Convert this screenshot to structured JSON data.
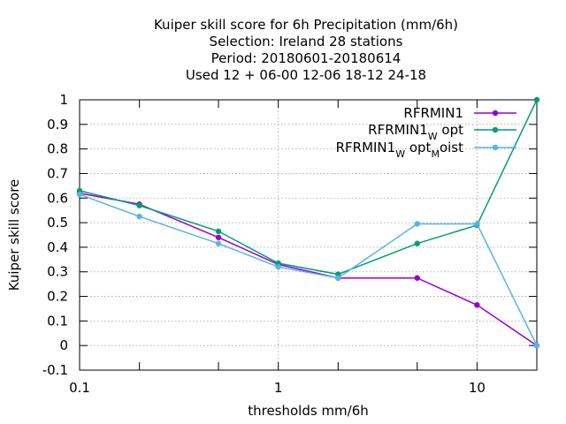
{
  "chart_data": {
    "type": "line",
    "title_lines": [
      "Kuiper skill score  for 6h Precipitation (mm/6h)",
      "Selection: Ireland      28 stations",
      "Period: 20180601-20180614",
      "Used  12 + 06-00 12-06 18-12 24-18"
    ],
    "xlabel": "thresholds mm/6h",
    "ylabel": "Kuiper skill score",
    "xscale": "log",
    "xlim": [
      0.1,
      20
    ],
    "ylim": [
      -0.1,
      1
    ],
    "xticks": [
      0.1,
      0.2,
      0.5,
      1,
      2,
      5,
      10,
      20
    ],
    "xtick_labels": [
      "0.1",
      "",
      "",
      "1",
      "",
      "",
      "10",
      ""
    ],
    "yticks": [
      -0.1,
      0,
      0.1,
      0.2,
      0.3,
      0.4,
      0.5,
      0.6,
      0.7,
      0.8,
      0.9,
      1
    ],
    "ytick_labels": [
      "-0.1",
      "0",
      "0.1",
      "0.2",
      "0.3",
      "0.4",
      "0.5",
      "0.6",
      "0.7",
      "0.8",
      "0.9",
      "1"
    ],
    "grid": true,
    "legend_position": "top-right",
    "x": [
      0.1,
      0.2,
      0.5,
      1,
      2,
      5,
      10,
      20
    ],
    "series": [
      {
        "name": "RFRMIN1",
        "legend_parts": [
          {
            "text": "RFRMIN1",
            "sub": false
          }
        ],
        "color": "#9400d3",
        "values": [
          0.62,
          0.575,
          0.44,
          0.33,
          0.275,
          0.275,
          0.165,
          0.0
        ]
      },
      {
        "name": "RFRMIN1_W opt",
        "legend_parts": [
          {
            "text": "RFRMIN1",
            "sub": false
          },
          {
            "text": "W",
            "sub": true
          },
          {
            "text": " opt",
            "sub": false
          }
        ],
        "color": "#009e73",
        "values": [
          0.63,
          0.57,
          0.465,
          0.335,
          0.29,
          0.415,
          0.49,
          1.0
        ]
      },
      {
        "name": "RFRMIN1_W opt_M oist",
        "legend_parts": [
          {
            "text": "RFRMIN1",
            "sub": false
          },
          {
            "text": "W",
            "sub": true
          },
          {
            "text": " opt",
            "sub": false
          },
          {
            "text": "M",
            "sub": true
          },
          {
            "text": "oist",
            "sub": false
          }
        ],
        "color": "#56b4e9",
        "values": [
          0.615,
          0.525,
          0.415,
          0.32,
          0.275,
          0.495,
          0.495,
          0.0
        ]
      }
    ]
  }
}
